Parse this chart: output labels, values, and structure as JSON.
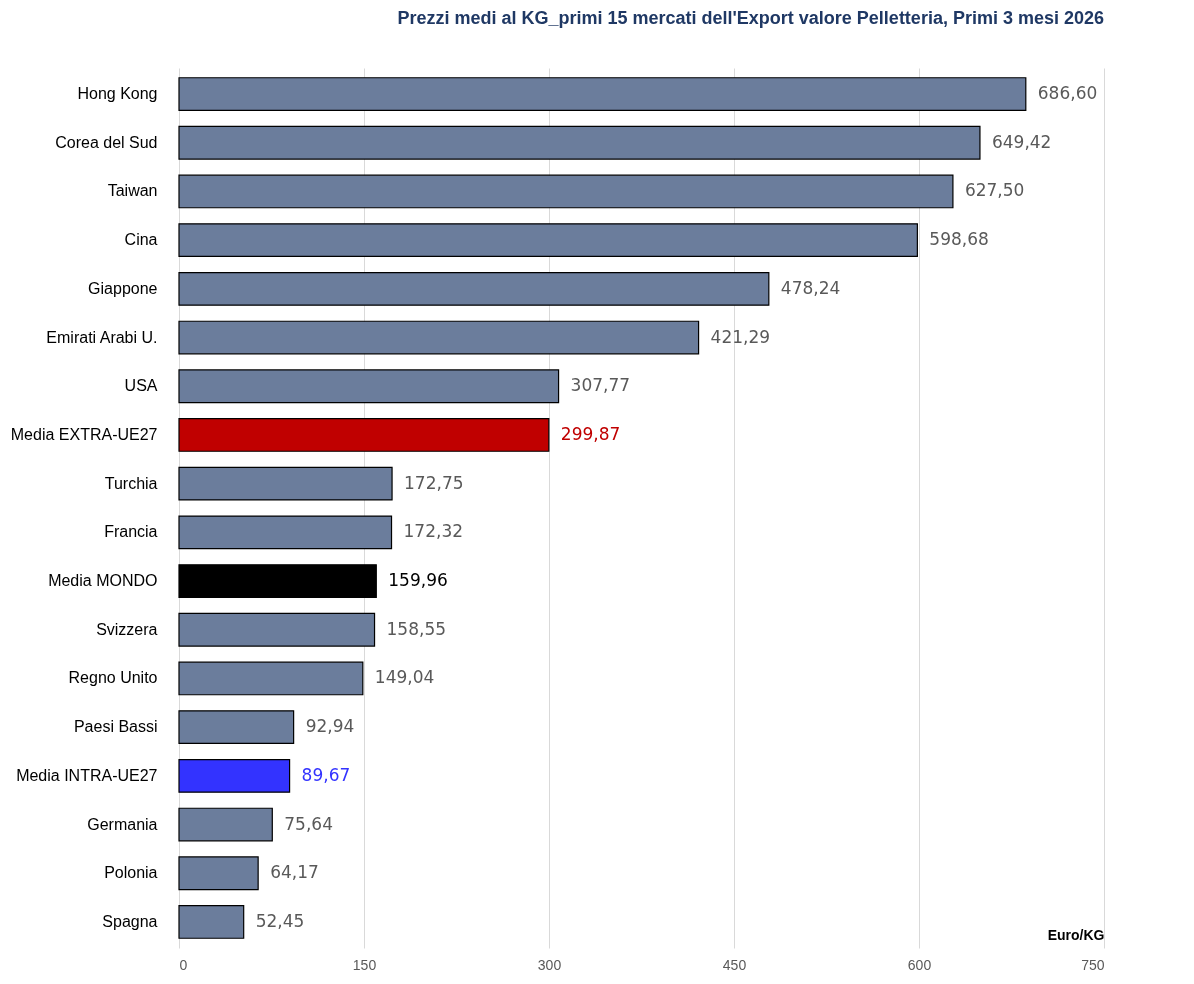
{
  "chart_data": {
    "type": "bar",
    "orientation": "horizontal",
    "title": "Prezzi medi al KG_primi 15  mercati dell'Export valore Pelletteria, Primi 3 mesi 2026",
    "xlabel": "Euro/KG",
    "categories": [
      "Hong Kong",
      "Corea del Sud",
      "Taiwan",
      "Cina",
      "Giappone",
      "Emirati Arabi U.",
      "USA",
      "Media EXTRA-UE27",
      "Turchia",
      "Francia",
      "Media MONDO",
      "Svizzera",
      "Regno Unito",
      "Paesi Bassi",
      "Media INTRA-UE27",
      "Germania",
      "Polonia",
      "Spagna"
    ],
    "values": [
      686.6,
      649.42,
      627.5,
      598.68,
      478.24,
      421.29,
      307.77,
      299.87,
      172.75,
      172.32,
      159.96,
      158.55,
      149.04,
      92.94,
      89.67,
      75.64,
      64.17,
      52.45
    ],
    "value_labels": [
      "686,60",
      "649,42",
      "627,50",
      "598,68",
      "478,24",
      "421,29",
      "307,77",
      "299,87",
      "172,75",
      "172,32",
      "159,96",
      "158,55",
      "149,04",
      "92,94",
      "89,67",
      "75,64",
      "64,17",
      "52,45"
    ],
    "colors": [
      "#6b7d9c",
      "#6b7d9c",
      "#6b7d9c",
      "#6b7d9c",
      "#6b7d9c",
      "#6b7d9c",
      "#6b7d9c",
      "#c00000",
      "#6b7d9c",
      "#6b7d9c",
      "#000000",
      "#6b7d9c",
      "#6b7d9c",
      "#6b7d9c",
      "#3333ff",
      "#6b7d9c",
      "#6b7d9c",
      "#6b7d9c"
    ],
    "xlim": [
      0,
      750
    ],
    "xticks": [
      0,
      150,
      300,
      450,
      600,
      750
    ],
    "grid": "x"
  }
}
